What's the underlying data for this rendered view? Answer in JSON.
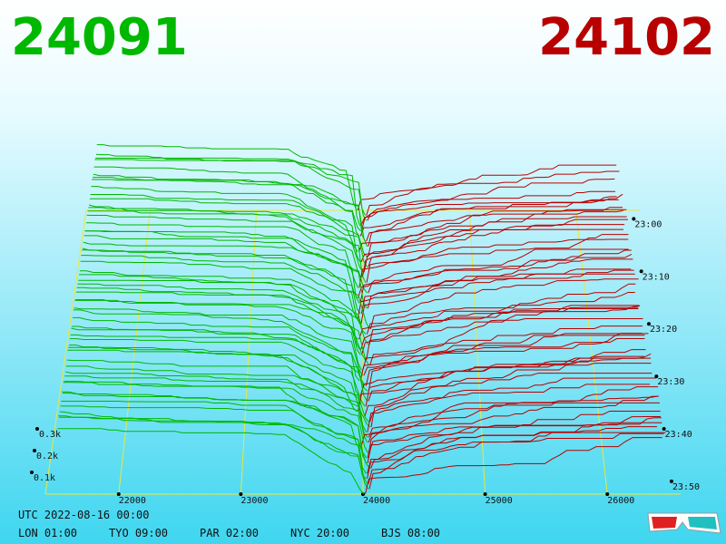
{
  "chart_data": {
    "type": "depth3d",
    "bid_price": "24091",
    "ask_price": "24102",
    "xticks": [
      22000,
      23000,
      24000,
      25000,
      26000
    ],
    "xlim": [
      21400,
      26600
    ],
    "zticks": [
      {
        "value": 100,
        "label": "0.1k"
      },
      {
        "value": 200,
        "label": "0.2k"
      },
      {
        "value": 300,
        "label": "0.3k"
      }
    ],
    "time_ticks": [
      "23:00",
      "23:10",
      "23:20",
      "23:30",
      "23:40",
      "23:50"
    ],
    "utc_label": "UTC 2022-08-16 00:00",
    "clocks": [
      "LON 01:00",
      "TYO 09:00",
      "PAR 02:00",
      "NYC 20:00",
      "BJS 08:00"
    ],
    "bid_color": "#00b800",
    "ask_color": "#b80000",
    "grid_color": "#e8e840"
  }
}
